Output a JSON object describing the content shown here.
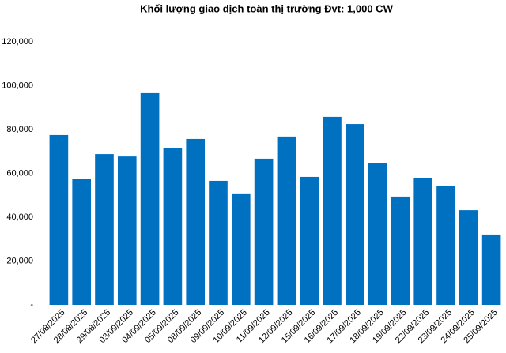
{
  "chart_data": {
    "type": "bar",
    "title": "Khối lượng giao dịch toàn thị trường Đvt: 1,000 CW",
    "categories": [
      "27/08/2025",
      "28/08/2025",
      "29/08/2025",
      "03/09/2025",
      "04/09/2025",
      "05/09/2025",
      "08/09/2025",
      "09/09/2025",
      "10/09/2025",
      "11/09/2025",
      "12/09/2025",
      "15/09/2025",
      "16/09/2025",
      "17/09/2025",
      "18/09/2025",
      "19/09/2025",
      "22/09/2025",
      "23/09/2025",
      "24/09/2025",
      "25/09/2025"
    ],
    "values": [
      77500,
      57300,
      68800,
      67700,
      96600,
      71400,
      75700,
      56600,
      50500,
      66700,
      76800,
      58400,
      85800,
      82500,
      64500,
      49400,
      58000,
      54400,
      43200,
      32100
    ],
    "color": "#0070c0",
    "ylim": [
      0,
      120000
    ],
    "yticks": [
      {
        "value": 0,
        "label": "-"
      },
      {
        "value": 20000,
        "label": "20,000"
      },
      {
        "value": 40000,
        "label": "40,000"
      },
      {
        "value": 60000,
        "label": "60,000"
      },
      {
        "value": 80000,
        "label": "80,000"
      },
      {
        "value": 100000,
        "label": "100,000"
      },
      {
        "value": 120000,
        "label": "120,000"
      }
    ],
    "grid": false
  }
}
